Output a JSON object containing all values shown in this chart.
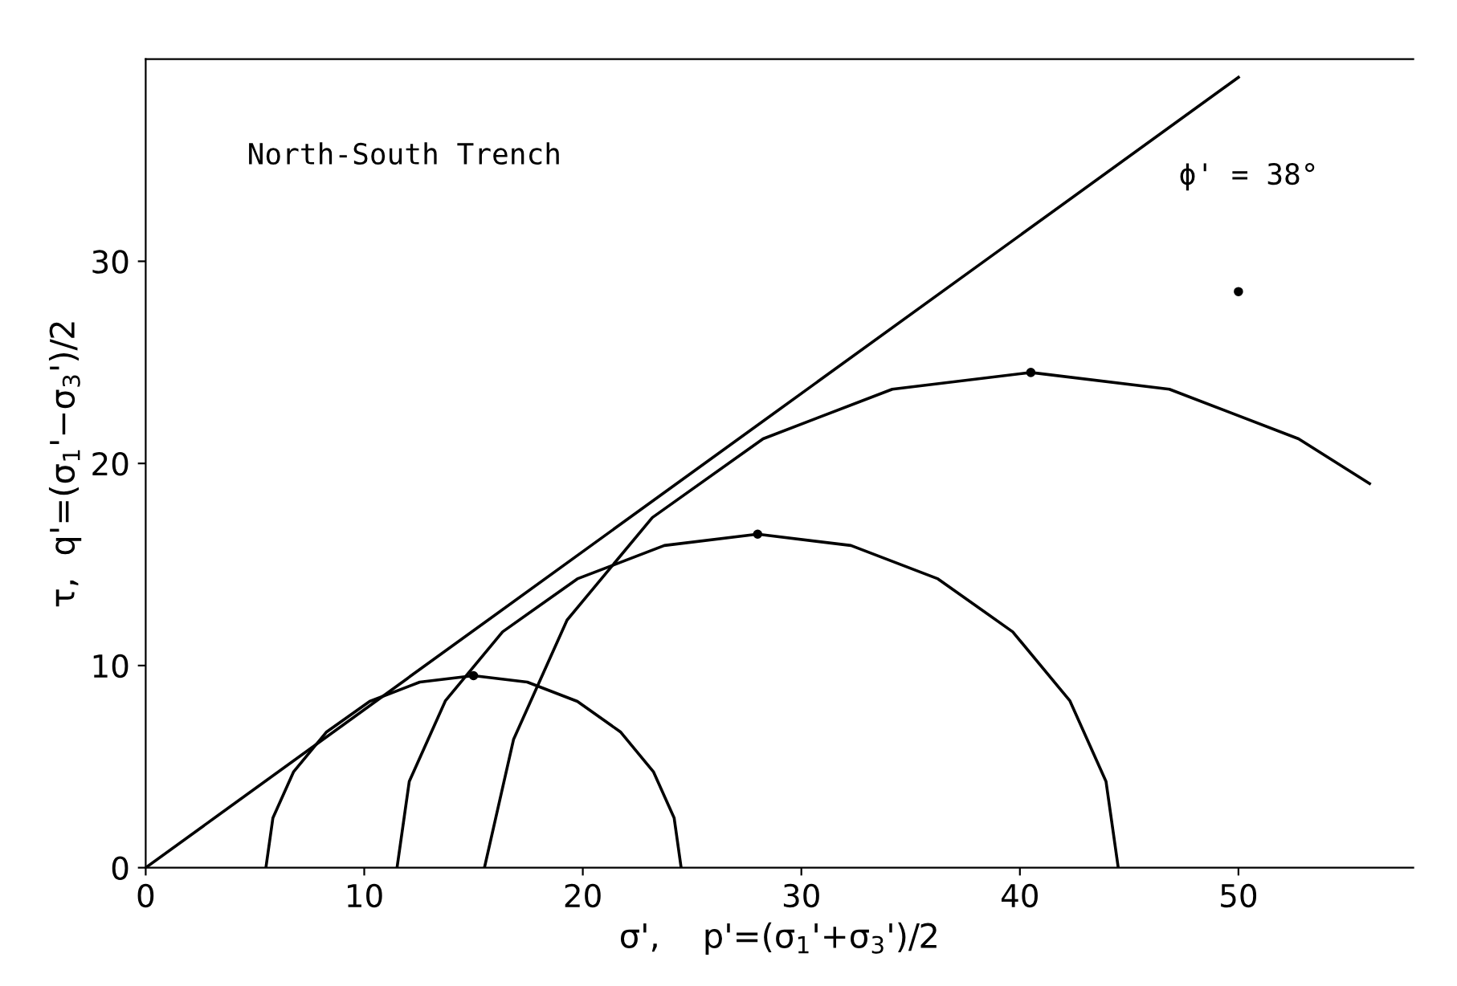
{
  "chart_data": {
    "type": "line",
    "title": null,
    "xlabel": "σ',    p'=(σ$_{1}$'+σ$_{3}$')/2",
    "ylabel": "τ,  q'=(σ$_{1}$'−σ$_{3}$')/2",
    "annotations": [
      "North-South Trench",
      "ϕ' = 38°"
    ],
    "series": [
      {
        "color": "#000000",
        "x": [
          0,
          50
        ],
        "values": [
          0,
          39.1
        ]
      },
      {
        "color": "#000000",
        "x": [
          5.5,
          5.82,
          6.77,
          8.28,
          10.25,
          12.54,
          15,
          17.46,
          19.75,
          21.72,
          23.23,
          24.18,
          24.5
        ],
        "values": [
          0,
          2.46,
          4.75,
          6.72,
          8.23,
          9.18,
          9.5,
          9.18,
          8.23,
          6.72,
          4.75,
          2.46,
          0
        ]
      },
      {
        "color": "#000000",
        "x": [
          11.5,
          12.06,
          13.71,
          16.33,
          19.75,
          23.73,
          28,
          32.27,
          36.25,
          39.67,
          42.29,
          43.94,
          44.5
        ],
        "values": [
          0,
          4.27,
          8.25,
          11.67,
          14.29,
          15.94,
          16.5,
          15.94,
          14.29,
          11.67,
          8.25,
          4.27,
          0
        ]
      },
      {
        "color": "#000000",
        "x": [
          15.5,
          16.83,
          19.28,
          23.18,
          28.25,
          34.16,
          40.5,
          46.84,
          52.75,
          56
        ],
        "values": [
          0,
          6.34,
          12.25,
          17.32,
          21.22,
          23.67,
          24.5,
          23.67,
          21.22,
          19
        ]
      },
      {
        "type": "scatter",
        "color": "#000000",
        "x": [
          15,
          28,
          40.5,
          50
        ],
        "values": [
          9.5,
          16.5,
          24.5,
          28.5
        ]
      }
    ],
    "xlim": [
      0,
      58
    ],
    "ylim": [
      0,
      40
    ],
    "xticks": [
      0,
      10,
      20,
      30,
      40,
      50
    ],
    "yticks": [
      0,
      10,
      20,
      30
    ],
    "grid": false
  }
}
